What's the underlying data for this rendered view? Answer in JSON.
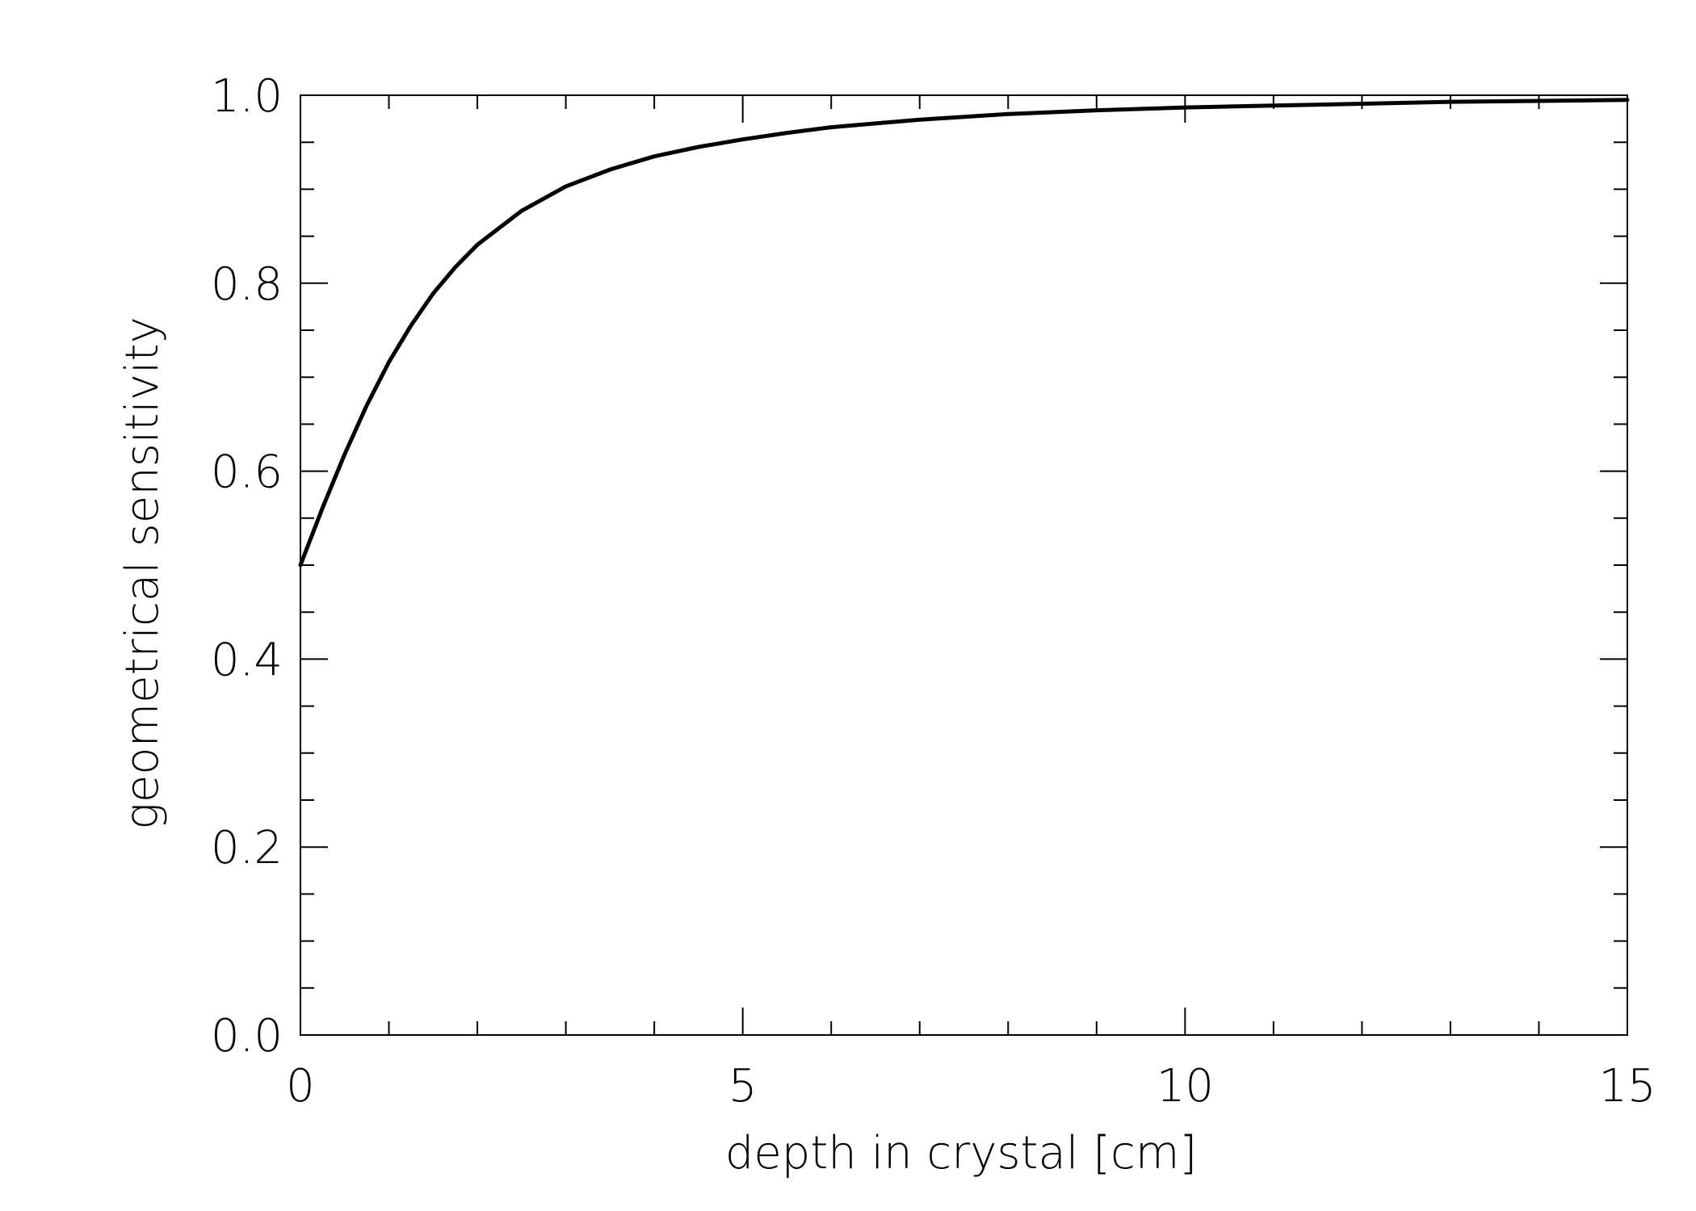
{
  "chart_data": {
    "type": "line",
    "title": "",
    "xlabel": "depth in crystal [cm]",
    "ylabel": "geometrical sensitivity",
    "xlim": [
      0,
      15
    ],
    "ylim": [
      0.0,
      1.0
    ],
    "x_ticks": [
      0,
      5,
      10,
      15
    ],
    "x_tick_labels": [
      "0",
      "5",
      "10",
      "15"
    ],
    "x_minor_tick_step": 1,
    "y_ticks": [
      0.0,
      0.2,
      0.4,
      0.6,
      0.8,
      1.0
    ],
    "y_tick_labels": [
      "0.0",
      "0.2",
      "0.4",
      "0.6",
      "0.8",
      "1.0"
    ],
    "y_minor_tick_step": 0.05,
    "grid": false,
    "legend": "none",
    "series": [
      {
        "color": "#000000",
        "x": [
          0,
          0.25,
          0.5,
          0.75,
          1.0,
          1.25,
          1.5,
          1.75,
          2.0,
          2.5,
          3.0,
          3.5,
          4.0,
          4.5,
          5.0,
          5.5,
          6.0,
          6.5,
          7.0,
          7.5,
          8.0,
          9.0,
          10.0,
          11.0,
          12.0,
          13.0,
          14.0,
          15.0
        ],
        "y": [
          0.5,
          0.561,
          0.618,
          0.67,
          0.716,
          0.755,
          0.789,
          0.817,
          0.841,
          0.877,
          0.903,
          0.921,
          0.935,
          0.945,
          0.953,
          0.96,
          0.966,
          0.97,
          0.974,
          0.977,
          0.98,
          0.984,
          0.987,
          0.989,
          0.991,
          0.993,
          0.994,
          0.995
        ]
      }
    ]
  }
}
